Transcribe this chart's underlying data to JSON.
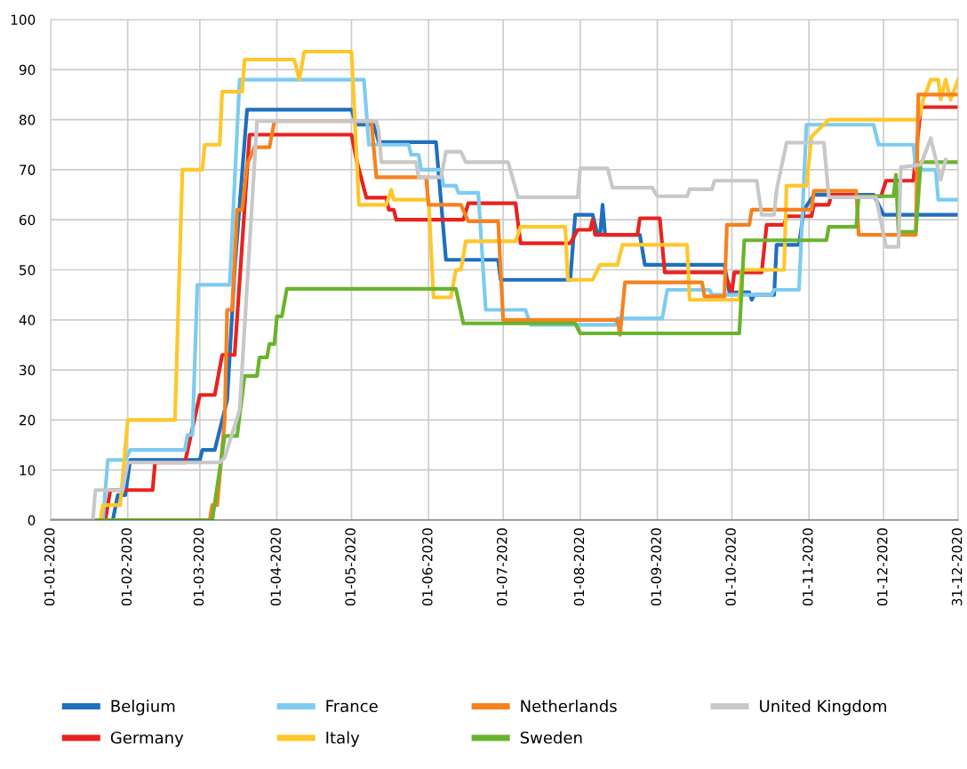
{
  "chart_data": {
    "type": "line",
    "xlim": [
      "2020-01-01",
      "2020-12-31"
    ],
    "ylim": [
      0,
      100
    ],
    "xticks": [
      {
        "value": "2020-01-01",
        "label": "01-01-2020"
      },
      {
        "value": "2020-02-01",
        "label": "01-02-2020"
      },
      {
        "value": "2020-03-01",
        "label": "01-03-2020"
      },
      {
        "value": "2020-04-01",
        "label": "01-04-2020"
      },
      {
        "value": "2020-05-01",
        "label": "01-05-2020"
      },
      {
        "value": "2020-06-01",
        "label": "01-06-2020"
      },
      {
        "value": "2020-07-01",
        "label": "01-07-2020"
      },
      {
        "value": "2020-08-01",
        "label": "01-08-2020"
      },
      {
        "value": "2020-09-01",
        "label": "01-09-2020"
      },
      {
        "value": "2020-10-01",
        "label": "01-10-2020"
      },
      {
        "value": "2020-11-01",
        "label": "01-11-2020"
      },
      {
        "value": "2020-12-01",
        "label": "01-12-2020"
      },
      {
        "value": "2020-12-31",
        "label": "31-12-2020"
      }
    ],
    "yticks": [
      0,
      10,
      20,
      30,
      40,
      50,
      60,
      70,
      80,
      90,
      100
    ],
    "grid": true,
    "legend": "bottom",
    "marker": "none",
    "line_style": "solid",
    "series": [
      {
        "name": "Belgium",
        "color": "#1f6fbf",
        "x": [
          "2020-01-01",
          "2020-01-26",
          "2020-01-28",
          "2020-01-31",
          "2020-02-02",
          "2020-03-01",
          "2020-03-02",
          "2020-03-07",
          "2020-03-12",
          "2020-03-15",
          "2020-03-20",
          "2020-05-01",
          "2020-05-03",
          "2020-05-10",
          "2020-05-12",
          "2020-06-04",
          "2020-06-08",
          "2020-06-29",
          "2020-06-30",
          "2020-07-28",
          "2020-07-30",
          "2020-08-06",
          "2020-08-08",
          "2020-08-09",
          "2020-08-10",
          "2020-08-11",
          "2020-08-25",
          "2020-08-27",
          "2020-09-28",
          "2020-09-30",
          "2020-10-08",
          "2020-10-09",
          "2020-10-10",
          "2020-10-18",
          "2020-10-19",
          "2020-10-28",
          "2020-10-30",
          "2020-11-03",
          "2020-11-27",
          "2020-12-01",
          "2020-12-31"
        ],
        "values": [
          0,
          0,
          5,
          5,
          12,
          12,
          14,
          14,
          24,
          50,
          82,
          82,
          79,
          79,
          75.5,
          75.5,
          52,
          52,
          48,
          48,
          61,
          61,
          57,
          57,
          63,
          57,
          57,
          51,
          51,
          45.5,
          45.5,
          44,
          45,
          45,
          55,
          55,
          62,
          65,
          65,
          61,
          61
        ]
      },
      {
        "name": "Germany",
        "color": "#e8231f",
        "x": [
          "2020-01-01",
          "2020-01-23",
          "2020-01-25",
          "2020-02-11",
          "2020-02-12",
          "2020-02-24",
          "2020-03-01",
          "2020-03-07",
          "2020-03-10",
          "2020-03-15",
          "2020-03-21",
          "2020-05-01",
          "2020-05-03",
          "2020-05-07",
          "2020-05-15",
          "2020-05-16",
          "2020-05-18",
          "2020-05-19",
          "2020-06-15",
          "2020-06-17",
          "2020-07-06",
          "2020-07-08",
          "2020-07-28",
          "2020-07-31",
          "2020-08-05",
          "2020-08-06",
          "2020-08-07",
          "2020-08-24",
          "2020-08-25",
          "2020-09-02",
          "2020-09-04",
          "2020-09-28",
          "2020-10-01",
          "2020-10-02",
          "2020-10-13",
          "2020-10-15",
          "2020-10-22",
          "2020-10-23",
          "2020-11-02",
          "2020-11-03",
          "2020-11-09",
          "2020-11-10",
          "2020-11-20",
          "2020-11-21",
          "2020-11-30",
          "2020-12-02",
          "2020-12-13",
          "2020-12-16",
          "2020-12-31"
        ],
        "values": [
          0,
          0,
          6,
          6,
          11.5,
          11.5,
          25,
          25,
          33,
          33,
          77,
          77,
          72,
          64.4,
          64.4,
          62,
          62,
          60,
          60,
          63.3,
          63.3,
          55.3,
          55.3,
          58,
          58,
          60,
          57,
          57,
          60.3,
          60.3,
          49.5,
          49.5,
          45.5,
          49.5,
          49.5,
          59,
          59,
          60.7,
          60.7,
          63,
          63,
          65,
          65,
          64.7,
          64.7,
          67.8,
          67.8,
          82.5,
          82.5
        ]
      },
      {
        "name": "France",
        "color": "#7ecbf2",
        "x": [
          "2020-01-01",
          "2020-01-22",
          "2020-01-24",
          "2020-01-31",
          "2020-02-02",
          "2020-02-24",
          "2020-02-25",
          "2020-02-27",
          "2020-02-29",
          "2020-03-13",
          "2020-03-17",
          "2020-05-06",
          "2020-05-08",
          "2020-05-24",
          "2020-05-25",
          "2020-05-28",
          "2020-05-29",
          "2020-06-06",
          "2020-06-07",
          "2020-06-12",
          "2020-06-13",
          "2020-06-21",
          "2020-06-24",
          "2020-07-10",
          "2020-07-12",
          "2020-08-15",
          "2020-08-16",
          "2020-09-03",
          "2020-09-05",
          "2020-09-22",
          "2020-09-23",
          "2020-10-17",
          "2020-10-18",
          "2020-10-28",
          "2020-10-31",
          "2020-11-27",
          "2020-11-29",
          "2020-12-13",
          "2020-12-14",
          "2020-12-22",
          "2020-12-23",
          "2020-12-31"
        ],
        "values": [
          0,
          0,
          12,
          12,
          14,
          14,
          17,
          17,
          47,
          47,
          88,
          88,
          75,
          75,
          73,
          73,
          70,
          70,
          66.8,
          66.8,
          65.4,
          65.4,
          42,
          42,
          39,
          39,
          40.3,
          40.3,
          46,
          46,
          45,
          45,
          46,
          46,
          79,
          79,
          75,
          75,
          70,
          70,
          64,
          64
        ]
      },
      {
        "name": "Italy",
        "color": "#ffc72c",
        "x": [
          "2020-01-01",
          "2020-01-21",
          "2020-01-22",
          "2020-01-29",
          "2020-02-01",
          "2020-02-20",
          "2020-02-23",
          "2020-03-02",
          "2020-03-03",
          "2020-03-09",
          "2020-03-10",
          "2020-03-18",
          "2020-03-19",
          "2020-04-08",
          "2020-04-10",
          "2020-04-12",
          "2020-05-01",
          "2020-05-04",
          "2020-05-15",
          "2020-05-17",
          "2020-05-18",
          "2020-06-01",
          "2020-06-03",
          "2020-06-10",
          "2020-06-12",
          "2020-06-14",
          "2020-06-16",
          "2020-07-06",
          "2020-07-08",
          "2020-07-26",
          "2020-07-27",
          "2020-08-06",
          "2020-08-09",
          "2020-08-16",
          "2020-08-18",
          "2020-09-13",
          "2020-09-14",
          "2020-10-04",
          "2020-10-05",
          "2020-10-22",
          "2020-10-23",
          "2020-10-31",
          "2020-11-02",
          "2020-11-09",
          "2020-12-15",
          "2020-12-17",
          "2020-12-20",
          "2020-12-23",
          "2020-12-24",
          "2020-12-26",
          "2020-12-28",
          "2020-12-31"
        ],
        "values": [
          0,
          0,
          3,
          3,
          20,
          20,
          70,
          70,
          75,
          75,
          85.6,
          85.6,
          92,
          92,
          88,
          93.6,
          93.6,
          63,
          63,
          66,
          64,
          64,
          44.5,
          44.5,
          50,
          50,
          55.7,
          55.7,
          58.6,
          58.6,
          48,
          48,
          51,
          51,
          55,
          55,
          44,
          44,
          50,
          50,
          66.8,
          66.8,
          76.6,
          80,
          80,
          84,
          88,
          88,
          84,
          88,
          84,
          88
        ]
      },
      {
        "name": "Netherlands",
        "color": "#f5821f",
        "x": [
          "2020-01-01",
          "2020-03-05",
          "2020-03-06",
          "2020-03-08",
          "2020-03-11",
          "2020-03-12",
          "2020-03-14",
          "2020-03-16",
          "2020-03-18",
          "2020-03-20",
          "2020-03-23",
          "2020-03-29",
          "2020-03-31",
          "2020-05-09",
          "2020-05-11",
          "2020-05-31",
          "2020-06-01",
          "2020-06-14",
          "2020-06-17",
          "2020-06-29",
          "2020-07-01",
          "2020-08-16",
          "2020-08-17",
          "2020-08-19",
          "2020-09-19",
          "2020-09-20",
          "2020-09-28",
          "2020-09-29",
          "2020-10-08",
          "2020-10-09",
          "2020-11-02",
          "2020-11-03",
          "2020-11-20",
          "2020-11-21",
          "2020-12-14",
          "2020-12-15",
          "2020-12-31"
        ],
        "values": [
          0,
          0,
          3,
          3,
          20,
          42,
          42,
          62,
          62,
          71,
          74.5,
          74.5,
          79.7,
          79.7,
          68.5,
          68.5,
          63,
          63,
          59.7,
          59.7,
          40,
          40,
          37,
          47.5,
          47.5,
          44.7,
          44.7,
          59,
          59,
          62,
          62,
          65.8,
          65.8,
          57,
          57,
          85,
          85
        ]
      },
      {
        "name": "Sweden",
        "color": "#6ab42d",
        "x": [
          "2020-01-01",
          "2020-03-06",
          "2020-03-11",
          "2020-03-16",
          "2020-03-19",
          "2020-03-24",
          "2020-03-25",
          "2020-03-28",
          "2020-03-29",
          "2020-03-31",
          "2020-04-01",
          "2020-04-03",
          "2020-04-05",
          "2020-06-12",
          "2020-06-15",
          "2020-07-30",
          "2020-08-01",
          "2020-10-04",
          "2020-10-06",
          "2020-11-08",
          "2020-11-09",
          "2020-11-20",
          "2020-11-21",
          "2020-12-05",
          "2020-12-06",
          "2020-12-07",
          "2020-12-14",
          "2020-12-16",
          "2020-12-31"
        ],
        "values": [
          0,
          0,
          16.8,
          16.8,
          28.8,
          28.8,
          32.5,
          32.5,
          35.2,
          35.2,
          40.7,
          40.7,
          46.2,
          46.2,
          39.3,
          39.3,
          37.3,
          37.3,
          55.9,
          55.9,
          58.6,
          58.6,
          64.7,
          64.7,
          69,
          57.6,
          57.6,
          71.5,
          71.5
        ]
      },
      {
        "name": "United Kingdom",
        "color": "#c8c8c8",
        "x": [
          "2020-01-01",
          "2020-01-18",
          "2020-01-19",
          "2020-01-30",
          "2020-02-01",
          "2020-03-09",
          "2020-03-11",
          "2020-03-17",
          "2020-03-24",
          "2020-05-11",
          "2020-05-12",
          "2020-05-13",
          "2020-05-27",
          "2020-05-28",
          "2020-06-06",
          "2020-06-08",
          "2020-06-14",
          "2020-06-16",
          "2020-07-03",
          "2020-07-07",
          "2020-07-31",
          "2020-08-01",
          "2020-08-12",
          "2020-08-14",
          "2020-08-30",
          "2020-09-01",
          "2020-09-13",
          "2020-09-14",
          "2020-09-23",
          "2020-09-24",
          "2020-10-11",
          "2020-10-13",
          "2020-10-18",
          "2020-10-19",
          "2020-10-23",
          "2020-11-07",
          "2020-11-09",
          "2020-11-28",
          "2020-12-02",
          "2020-12-07",
          "2020-12-08",
          "2020-12-16",
          "2020-12-20",
          "2020-12-24",
          "2020-12-26"
        ],
        "values": [
          0,
          0,
          6,
          6,
          11.5,
          11.5,
          12.5,
          22,
          79.7,
          79.7,
          77.6,
          71.5,
          71.5,
          68.5,
          68.5,
          73.6,
          73.6,
          71.5,
          71.5,
          64.5,
          64.5,
          70.3,
          70.3,
          66.4,
          66.4,
          64.7,
          64.7,
          66.1,
          66.1,
          67.8,
          67.8,
          61,
          61,
          66,
          75.4,
          75.4,
          64.5,
          64.5,
          54.6,
          54.6,
          70.5,
          71,
          76.3,
          68,
          72
        ]
      }
    ]
  }
}
